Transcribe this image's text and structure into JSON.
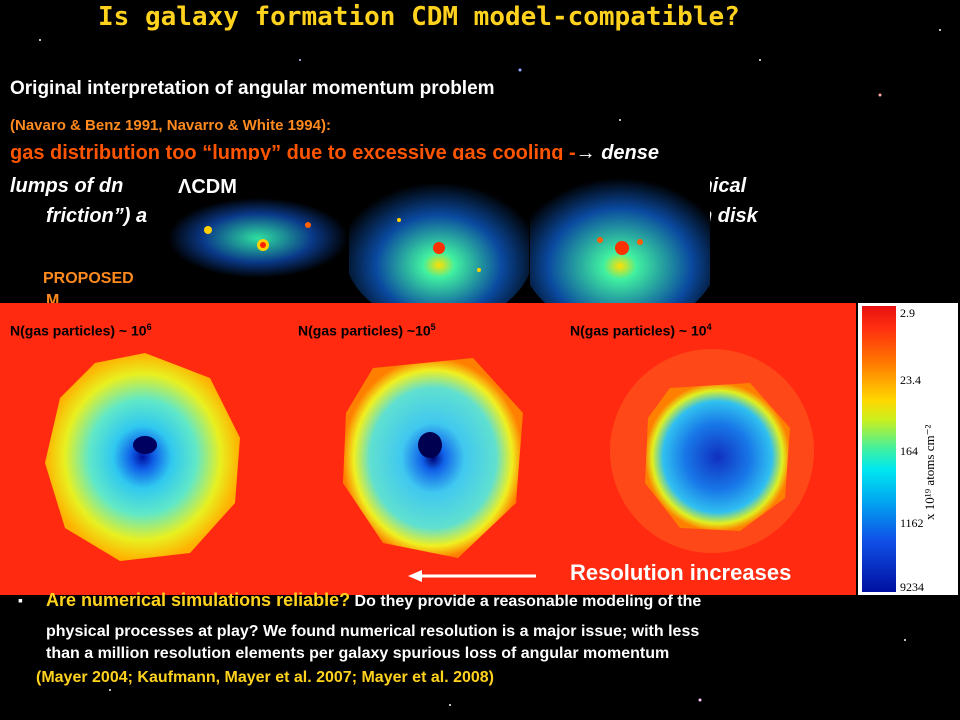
{
  "slide": {
    "title": "Is galaxy formation CDM model-compatible?",
    "heading": "Original interpretation of angular momentum problem",
    "citation_top": "(Navaro & Benz 1991, Navarro & White 1994):",
    "line1_orange": "gas distribution too “lumpy” due to excessive gas cooling -",
    "line1_arrow": "→",
    "line1_white": " dense",
    "line2_left": "lumps of  dn",
    "line2_right": "rag (“dynamical",
    "line3_left": "friction”) a",
    "line3_right": "n disk",
    "proposed_fragment": "PROPOSED",
    "proposed_fragment_2": "M",
    "cdm_label": "ΛCDM",
    "sim_labels": [
      {
        "prefix": "N(gas particles) ~ 10",
        "exp": "6"
      },
      {
        "prefix": "N(gas particles) ~10",
        "exp": "5"
      },
      {
        "prefix": "N(gas particles) ~ 10",
        "exp": "4"
      }
    ],
    "colorbar": {
      "ticks": [
        "2.9",
        "23.4",
        "164",
        "1162",
        "9234"
      ],
      "units": "x 10¹⁹ atoms cm⁻²",
      "colors": [
        "#E81010",
        "#FF7A00",
        "#FFD800",
        "#00E8F0",
        "#1050E8",
        "#0010A0"
      ]
    },
    "resolution_text": "Resolution increases",
    "bullet_symbol": "▪",
    "bullet_q": "Are numerical simulations reliable?",
    "bullet_line1_rest": " Do they provide a reasonable modeling of the",
    "bullet_line2": "physical processes at play? We found numerical resolution is a major issue; with less",
    "bullet_line3": "than a million resolution elements per galaxy spurious loss of angular momentum",
    "citation_bottom": "(Mayer 2004; Kaufmann, Mayer et al. 2007; Mayer et al. 2008)"
  },
  "colors": {
    "title": "#FFD21E",
    "orange_text": "#FF5500",
    "citation": "#FF8A1E",
    "sim_background": "#FF2A10"
  }
}
